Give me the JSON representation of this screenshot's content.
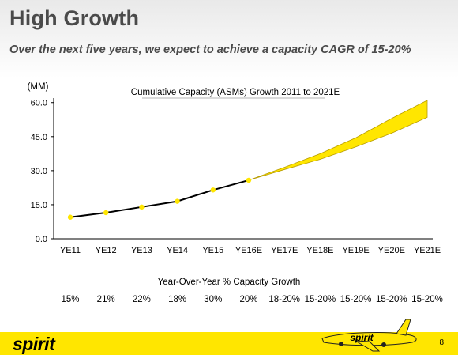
{
  "page": {
    "title": "High Growth",
    "subtitle": "Over the next five years, we expect to achieve a capacity CAGR of 15-20%",
    "page_number": "8",
    "logo_text": "spirit",
    "plane_logo_text": "spirit",
    "brand_colors": {
      "yellow": "#ffe600",
      "line": "#000000",
      "band_stroke": "#b89c00"
    }
  },
  "chart_data": {
    "type": "line",
    "title": "Cumulative Capacity (ASMs) Growth 2011 to 2021E",
    "ylabel": "(MM)",
    "xlabel": "",
    "categories": [
      "YE11",
      "YE12",
      "YE13",
      "YE14",
      "YE15",
      "YE16E",
      "YE17E",
      "YE18E",
      "YE19E",
      "YE20E",
      "YE21E"
    ],
    "yticks": [
      "0.0",
      "15.0",
      "30.0",
      "45.0",
      "60.0"
    ],
    "ylim": [
      0,
      62
    ],
    "series": [
      {
        "name": "",
        "values": [
          9.5,
          11.5,
          14.0,
          16.5,
          21.5,
          25.8,
          null,
          null,
          null,
          null,
          null
        ]
      }
    ],
    "projection_band": {
      "categories": [
        "YE16E",
        "YE17E",
        "YE18E",
        "YE19E",
        "YE20E",
        "YE21E"
      ],
      "low": [
        25.8,
        30.5,
        35.0,
        40.5,
        46.5,
        53.5
      ],
      "high": [
        25.8,
        31.5,
        37.5,
        44.5,
        53.0,
        61.0
      ]
    },
    "grid": false,
    "legend": "none"
  },
  "growth_table": {
    "heading": "Year-Over-Year % Capacity Growth",
    "values": [
      "15%",
      "21%",
      "22%",
      "18%",
      "30%",
      "20%",
      "18-20%",
      "15-20%",
      "15-20%",
      "15-20%",
      "15-20%"
    ]
  }
}
